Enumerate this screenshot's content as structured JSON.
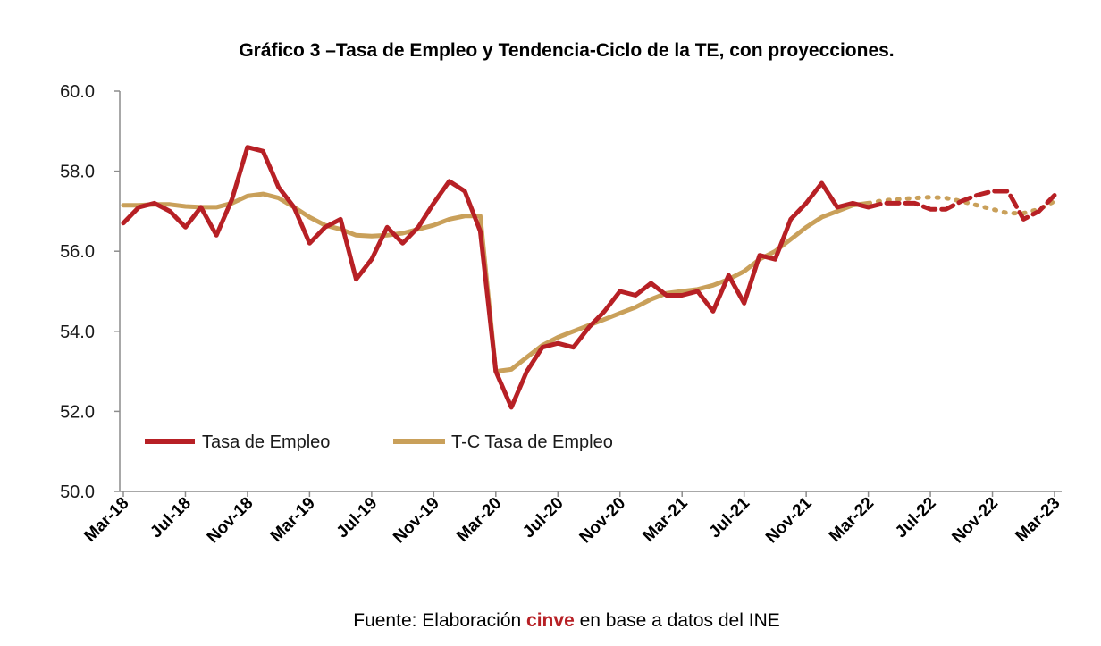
{
  "chart_data": {
    "type": "line",
    "title": "Gráfico 3 –Tasa de Empleo y Tendencia-Ciclo de la TE, con proyecciones.",
    "ylim": [
      50,
      60
    ],
    "yticks": [
      "60.0",
      "58.0",
      "56.0",
      "54.0",
      "52.0",
      "50.0"
    ],
    "ytick_values": [
      60,
      58,
      56,
      54,
      52,
      50
    ],
    "x_tick_labels": [
      "Mar-18",
      "Jul-18",
      "Nov-18",
      "Mar-19",
      "Jul-19",
      "Nov-19",
      "Mar-20",
      "Jul-20",
      "Nov-20",
      "Mar-21",
      "Jul-21",
      "Nov-21",
      "Mar-22",
      "Jul-22",
      "Nov-22",
      "Mar-23"
    ],
    "x_start": "Mar-18",
    "x_end": "Mar-23",
    "projection_start": "Mar-22",
    "grid": false,
    "legend_position": "lower-left",
    "series": [
      {
        "name": "Tasa de Empleo",
        "color": "#b72025",
        "values": [
          56.7,
          57.1,
          57.2,
          57.0,
          56.6,
          57.1,
          56.4,
          57.3,
          58.6,
          58.5,
          57.6,
          57.1,
          56.2,
          56.6,
          56.8,
          55.3,
          55.8,
          56.6,
          56.2,
          56.6,
          57.2,
          57.75,
          57.5,
          56.5,
          53.0,
          52.1,
          53.0,
          53.6,
          53.7,
          53.6,
          54.1,
          54.5,
          55.0,
          54.9,
          55.2,
          54.9,
          54.9,
          55.0,
          54.5,
          55.4,
          54.7,
          55.9,
          55.8,
          56.8,
          57.2,
          57.7,
          57.1,
          57.2,
          57.1,
          57.2,
          57.2,
          57.2,
          57.05,
          57.05,
          57.25,
          57.4,
          57.5,
          57.5,
          56.8,
          57.0,
          57.4
        ],
        "projected_from_index": 48
      },
      {
        "name": "T-C Tasa de Empleo",
        "color": "#c9a05a",
        "values": [
          57.15,
          57.15,
          57.17,
          57.17,
          57.12,
          57.1,
          57.1,
          57.2,
          57.38,
          57.43,
          57.33,
          57.1,
          56.85,
          56.65,
          56.55,
          56.4,
          56.38,
          56.4,
          56.45,
          56.55,
          56.65,
          56.8,
          56.88,
          56.88,
          53.0,
          53.05,
          53.35,
          53.65,
          53.85,
          54.0,
          54.15,
          54.3,
          54.45,
          54.6,
          54.8,
          54.95,
          55.0,
          55.05,
          55.15,
          55.3,
          55.5,
          55.8,
          56.0,
          56.3,
          56.6,
          56.85,
          57.0,
          57.15,
          57.2,
          57.27,
          57.3,
          57.33,
          57.35,
          57.33,
          57.25,
          57.15,
          57.05,
          56.95,
          56.95,
          57.05,
          57.25
        ],
        "projected_from_index": 48
      }
    ]
  },
  "source_note": {
    "prefix": "Fuente: Elaboración ",
    "highlight": "cinve",
    "suffix": " en base a datos del INE",
    "highlight_color": "#b72025"
  }
}
